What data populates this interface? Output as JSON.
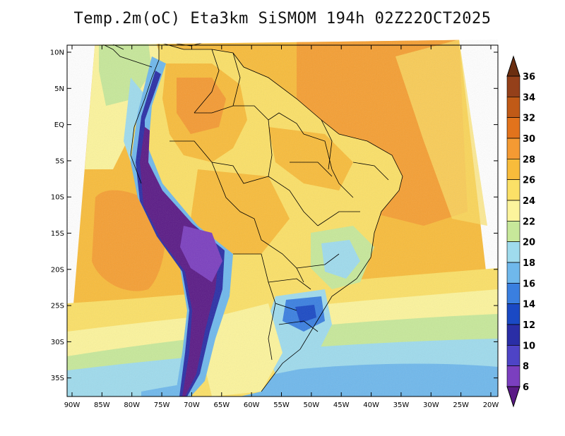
{
  "title": "Temp.2m(oC) Eta3km SiSMOM 194h 02Z22OCT2025",
  "lat_labels": [
    "10N",
    "5N",
    "EQ",
    "5S",
    "10S",
    "15S",
    "20S",
    "25S",
    "30S",
    "35S"
  ],
  "lon_labels": [
    "90W",
    "85W",
    "80W",
    "75W",
    "70W",
    "65W",
    "60W",
    "55W",
    "50W",
    "45W",
    "40W",
    "35W",
    "30W",
    "25W",
    "20W"
  ],
  "colorbar": {
    "labels": [
      "36",
      "34",
      "32",
      "30",
      "28",
      "26",
      "24",
      "22",
      "20",
      "18",
      "16",
      "14",
      "12",
      "10",
      "8",
      "6"
    ],
    "colors": [
      "#6b2e10",
      "#94401a",
      "#c05a17",
      "#e2731c",
      "#f49a33",
      "#f8bc3b",
      "#fbe067",
      "#fcf49c",
      "#c7e89a",
      "#9fdbed",
      "#6fb8ec",
      "#3a7fe0",
      "#1a49c4",
      "#2a2ea6",
      "#4e44c6",
      "#7b3fbf",
      "#5a1a86"
    ]
  },
  "map_colors": {
    "ocean_warm": "#f8bc3b",
    "ocean_hot": "#f49a33",
    "ocean_mild": "#fbe067",
    "ocean_cool": "#fcf49c",
    "ocean_cold": "#c7e89a",
    "ocean_colder": "#9fdbed",
    "ocean_coldest": "#6fb8ec",
    "land": "#fbe067",
    "land_warm": "#f8bc3b",
    "andes_dark": "#5a1a86",
    "andes_mid": "#7b3fbf",
    "highland_blue": "#6fb8ec",
    "border": "#000000"
  }
}
